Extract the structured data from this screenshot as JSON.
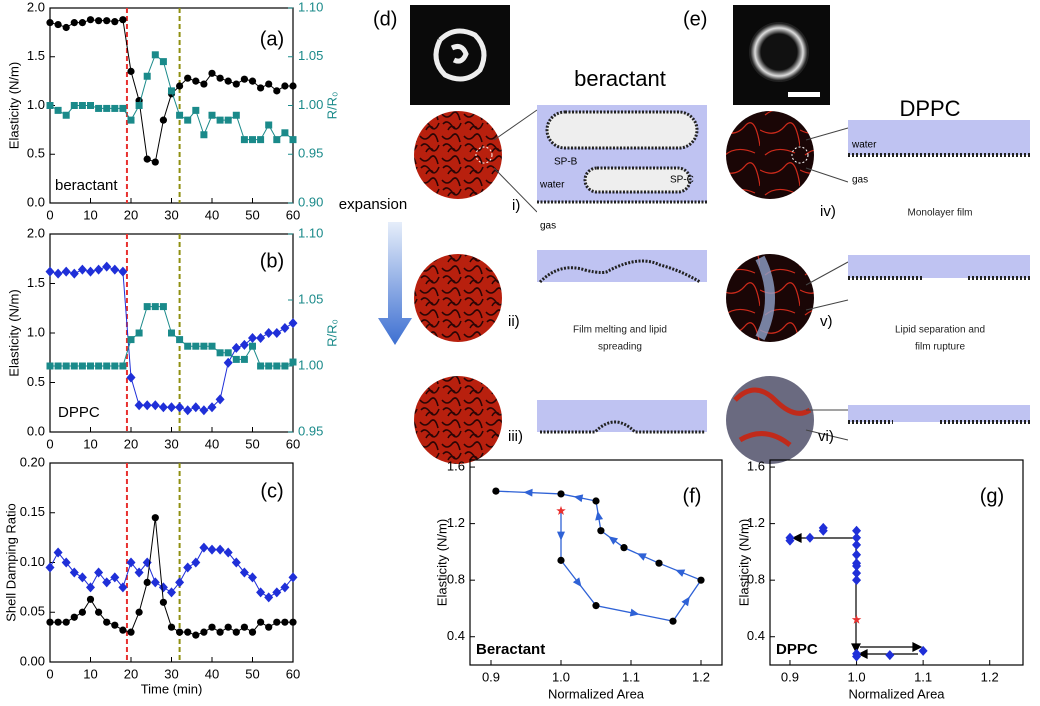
{
  "chart_data": [
    {
      "type": "line",
      "label": "(a)",
      "annotation": "beractant",
      "y_label": "Elasticity (N/m)",
      "y2_label": "R/R₀",
      "xlim": [
        0,
        60
      ],
      "xticks": [
        0,
        10,
        20,
        30,
        40,
        50,
        60
      ],
      "ylim": [
        0,
        2
      ],
      "yticks": [
        {
          "value": 0,
          "label": "0.0"
        },
        0.5,
        {
          "value": 1,
          "label": "1.0"
        },
        1.5,
        {
          "value": 2,
          "label": "2.0"
        }
      ],
      "y2lim": [
        0.9,
        1.1
      ],
      "y2ticks": [
        {
          "value": 0.9,
          "label": "0.90"
        },
        0.95,
        {
          "value": 1,
          "label": "1.00"
        },
        1.05,
        {
          "value": 1.1,
          "label": "1.10"
        }
      ],
      "vlines": [
        {
          "x": 19,
          "color": "#e8312f"
        },
        {
          "x": 32,
          "color": "#8f8f10"
        }
      ],
      "x": [
        0,
        2,
        4,
        6,
        8,
        10,
        12,
        14,
        16,
        18,
        20,
        22,
        24,
        26,
        28,
        30,
        32,
        34,
        36,
        38,
        40,
        42,
        44,
        46,
        48,
        50,
        52,
        54,
        56,
        58,
        60
      ],
      "series": [
        {
          "color": "#000000",
          "marker": "circle",
          "values": [
            1.85,
            1.83,
            1.8,
            1.85,
            1.85,
            1.88,
            1.87,
            1.87,
            1.86,
            1.88,
            1.35,
            1.05,
            0.45,
            0.42,
            0.85,
            1.12,
            1.2,
            1.28,
            1.25,
            1.22,
            1.33,
            1.28,
            1.25,
            1.22,
            1.27,
            1.25,
            1.18,
            1.22,
            1.15,
            1.2,
            1.2
          ]
        },
        {
          "color": "#1a8a8a",
          "marker": "square",
          "axis": "y2",
          "values": [
            1.0,
            0.995,
            0.99,
            1.0,
            1.0,
            1.0,
            0.997,
            0.997,
            0.997,
            0.997,
            0.985,
            1.0,
            1.03,
            1.052,
            1.045,
            1.015,
            0.99,
            0.985,
            0.995,
            0.97,
            0.99,
            0.985,
            0.985,
            0.99,
            0.965,
            0.965,
            0.965,
            0.98,
            0.965,
            0.972,
            0.965
          ]
        }
      ]
    },
    {
      "type": "line",
      "label": "(b)",
      "annotation": "DPPC",
      "y_label": "Elasticity (N/m)",
      "y2_label": "R/R₀",
      "xlim": [
        0,
        60
      ],
      "xticks": [
        0,
        10,
        20,
        30,
        40,
        50,
        60
      ],
      "ylim": [
        0,
        2
      ],
      "yticks": [
        {
          "value": 0,
          "label": "0.0"
        },
        0.5,
        {
          "value": 1,
          "label": "1.0"
        },
        1.5,
        {
          "value": 2,
          "label": "2.0"
        }
      ],
      "y2lim": [
        0.95,
        1.1
      ],
      "y2ticks": [
        0.95,
        {
          "value": 1,
          "label": "1.00"
        },
        1.05,
        {
          "value": 1.1,
          "label": "1.10"
        }
      ],
      "vlines": [
        {
          "x": 19,
          "color": "#e8312f"
        },
        {
          "x": 32,
          "color": "#8f8f10"
        }
      ],
      "x": [
        0,
        2,
        4,
        6,
        8,
        10,
        12,
        14,
        16,
        18,
        20,
        22,
        24,
        26,
        28,
        30,
        32,
        34,
        36,
        38,
        40,
        42,
        44,
        46,
        48,
        50,
        52,
        54,
        56,
        58,
        60
      ],
      "series": [
        {
          "color": "#1f2fd8",
          "marker": "diamond",
          "values": [
            1.62,
            1.6,
            1.62,
            1.6,
            1.64,
            1.62,
            1.64,
            1.67,
            1.64,
            1.62,
            0.55,
            0.27,
            0.27,
            0.27,
            0.25,
            0.25,
            0.25,
            0.22,
            0.25,
            0.22,
            0.25,
            0.33,
            0.7,
            0.85,
            0.88,
            0.95,
            0.95,
            1.0,
            1.0,
            1.05,
            1.1
          ]
        },
        {
          "color": "#1a8a8a",
          "marker": "square",
          "axis": "y2",
          "values": [
            1.0,
            1.0,
            1.0,
            1.0,
            1.0,
            1.0,
            1.0,
            1.0,
            1.0,
            1.0,
            1.02,
            1.025,
            1.045,
            1.045,
            1.045,
            1.025,
            1.02,
            1.015,
            1.015,
            1.015,
            1.015,
            1.01,
            1.01,
            1.005,
            1.005,
            1.015,
            1.0,
            1.0,
            1.0,
            1.0,
            1.003
          ]
        }
      ]
    },
    {
      "type": "line",
      "label": "(c)",
      "y_label": "Shell Damping Ratio",
      "x_label": "Time (min)",
      "xlim": [
        0,
        60
      ],
      "xticks": [
        0,
        10,
        20,
        30,
        40,
        50,
        60
      ],
      "ylim": [
        0,
        0.2
      ],
      "yticks": [
        {
          "value": 0,
          "label": "0.00"
        },
        0.05,
        {
          "value": 0.1,
          "label": "0.10"
        },
        0.15,
        {
          "value": 0.2,
          "label": "0.20"
        }
      ],
      "vlines": [
        {
          "x": 19,
          "color": "#e8312f"
        },
        {
          "x": 32,
          "color": "#8f8f10"
        }
      ],
      "x": [
        0,
        2,
        4,
        6,
        8,
        10,
        12,
        14,
        16,
        18,
        20,
        22,
        24,
        26,
        28,
        30,
        32,
        34,
        36,
        38,
        40,
        42,
        44,
        46,
        48,
        50,
        52,
        54,
        56,
        58,
        60
      ],
      "series": [
        {
          "color": "#1f2fd8",
          "marker": "diamond",
          "values": [
            0.095,
            0.11,
            0.1,
            0.09,
            0.085,
            0.075,
            0.09,
            0.08,
            0.085,
            0.075,
            0.1,
            0.09,
            0.1,
            0.08,
            0.075,
            0.07,
            0.08,
            0.095,
            0.1,
            0.115,
            0.113,
            0.113,
            0.11,
            0.1,
            0.09,
            0.085,
            0.07,
            0.065,
            0.07,
            0.075,
            0.085
          ]
        },
        {
          "color": "#000000",
          "marker": "circle",
          "values": [
            0.04,
            0.04,
            0.04,
            0.045,
            0.05,
            0.063,
            0.05,
            0.04,
            0.037,
            0.032,
            0.03,
            0.05,
            0.08,
            0.145,
            0.06,
            0.035,
            0.03,
            0.03,
            0.027,
            0.03,
            0.035,
            0.03,
            0.035,
            0.03,
            0.035,
            0.03,
            0.04,
            0.035,
            0.04,
            0.04,
            0.04
          ]
        }
      ]
    },
    {
      "type": "scatter",
      "label": "(f)",
      "annotation": "Beractant",
      "y_label": "Elasticity (N/m)",
      "x_label": "Normalized Area",
      "xlim": [
        0.87,
        1.23
      ],
      "xticks": [
        0.9,
        {
          "value": 1,
          "label": "1.0"
        },
        1.1,
        1.2
      ],
      "ylim": [
        0.2,
        1.65
      ],
      "yticks": [
        0.4,
        0.8,
        1.2,
        1.6
      ],
      "start_point": {
        "x": 1.0,
        "y": 1.29,
        "color": "#e8312f"
      },
      "series": [
        {
          "color": "#000000",
          "line_color": "#2f62d6",
          "marker": "circle",
          "connected": true,
          "x": [
            1.0,
            1.05,
            1.16,
            1.2,
            1.14,
            1.09,
            1.057,
            1.05,
            1.0,
            0.907
          ],
          "values": [
            0.94,
            0.62,
            0.51,
            0.8,
            0.92,
            1.03,
            1.15,
            1.36,
            1.41,
            1.43
          ]
        }
      ]
    },
    {
      "type": "scatter",
      "label": "(g)",
      "annotation": "DPPC",
      "y_label": "Elasticity (N/m)",
      "x_label": "Normalized Area",
      "xlim": [
        0.87,
        1.25
      ],
      "xticks": [
        0.9,
        {
          "value": 1,
          "label": "1.0"
        },
        1.1,
        1.2
      ],
      "ylim": [
        0.2,
        1.65
      ],
      "yticks": [
        0.4,
        0.8,
        1.2,
        1.6
      ],
      "start_point": {
        "x": 1.0,
        "y": 0.52,
        "color": "#e8312f"
      },
      "series": [
        {
          "color": "#1f2fd8",
          "marker": "diamond",
          "connected": false,
          "x": [
            0.9,
            0.9,
            0.93,
            0.95,
            0.95,
            1.0,
            1.0,
            1.0,
            1.0,
            1.0,
            1.0,
            1.0,
            1.0,
            1.0,
            1.0,
            1.05,
            1.1
          ],
          "values": [
            1.1,
            1.08,
            1.1,
            1.17,
            1.15,
            1.15,
            1.1,
            1.05,
            0.98,
            0.92,
            0.9,
            0.85,
            0.8,
            0.28,
            0.26,
            0.27,
            0.3
          ]
        }
      ]
    }
  ],
  "figure": {
    "d_label": "(d)",
    "e_label": "(e)",
    "beractant_title": "beractant",
    "dppc_title": "DPPC",
    "expansion": "expansion",
    "rows": [
      "i)",
      "ii)",
      "iii)",
      "iv)",
      "v)",
      "vi)"
    ],
    "sp_b": "SP-B",
    "sp_c": "SP-C",
    "water_1": "water",
    "gas_1": "gas",
    "water_2": "water",
    "gas_2": "gas",
    "caption_ii": [
      "Film melting and lipid",
      "spreading"
    ],
    "caption_iv": "Monolayer film",
    "caption_v": [
      "Lipid separation and",
      "film rupture"
    ]
  }
}
